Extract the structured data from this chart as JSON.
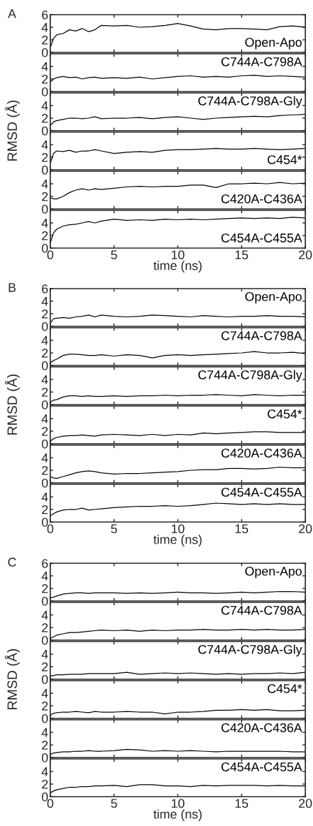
{
  "chart_data": [
    {
      "type": "line",
      "annotations": [
        "A"
      ],
      "x": [
        0,
        0.25,
        0.5,
        1,
        1.5,
        2,
        2.5,
        3,
        3.5,
        4,
        5,
        6,
        7,
        8,
        9,
        10,
        11,
        12,
        13,
        14,
        15,
        16,
        17,
        18,
        19,
        20
      ],
      "xlim": [
        0,
        20
      ],
      "xticks": [
        0,
        5,
        10,
        15,
        20
      ],
      "ylim": [
        0,
        6
      ],
      "yticks": [
        0,
        2,
        4,
        6
      ],
      "tick_labels": "y",
      "legend": "bottom right",
      "series": [
        {
          "name": "Open-Apo",
          "color": "#000000",
          "values": [
            0.8,
            2.2,
            2.8,
            3.0,
            3.6,
            3.4,
            3.8,
            3.3,
            3.6,
            4.3,
            4.2,
            4.3,
            4.0,
            4.1,
            4.3,
            4.6,
            4.2,
            3.7,
            3.6,
            3.8,
            3.8,
            3.7,
            3.6,
            4.1,
            4.2,
            4.0
          ]
        }
      ]
    },
    {
      "type": "line",
      "x": [
        0,
        0.25,
        0.5,
        1,
        1.5,
        2,
        2.5,
        3,
        3.5,
        4,
        5,
        6,
        7,
        8,
        9,
        10,
        11,
        12,
        13,
        14,
        15,
        16,
        17,
        18,
        19,
        20
      ],
      "xlim": [
        0,
        20
      ],
      "xticks": [
        0,
        5,
        10,
        15,
        20
      ],
      "ylim": [
        0,
        6
      ],
      "yticks": [
        0,
        2,
        4
      ],
      "tick_labels": "y",
      "legend": "top right",
      "series": [
        {
          "name": "C744A-C798A",
          "color": "#000000",
          "values": [
            1.5,
            2.0,
            2.2,
            2.4,
            2.2,
            2.3,
            2.0,
            2.2,
            2.3,
            2.1,
            2.2,
            2.1,
            2.3,
            2.0,
            2.2,
            2.4,
            2.5,
            2.3,
            2.4,
            2.3,
            2.5,
            2.6,
            2.4,
            2.5,
            2.4,
            2.3
          ]
        }
      ]
    },
    {
      "type": "line",
      "ylabel": "RMSD (Å)",
      "x": [
        0,
        0.25,
        0.5,
        1,
        1.5,
        2,
        2.5,
        3,
        3.5,
        4,
        5,
        6,
        7,
        8,
        9,
        10,
        11,
        12,
        13,
        14,
        15,
        16,
        17,
        18,
        19,
        20
      ],
      "xlim": [
        0,
        20
      ],
      "xticks": [
        0,
        5,
        10,
        15,
        20
      ],
      "ylim": [
        0,
        6
      ],
      "yticks": [
        0,
        2,
        4
      ],
      "tick_labels": "y",
      "legend": "top right",
      "series": [
        {
          "name": "C744A-C798A-Gly",
          "color": "#000000",
          "values": [
            0.8,
            1.4,
            1.6,
            1.8,
            2.0,
            2.0,
            1.9,
            2.0,
            2.2,
            1.9,
            2.0,
            2.0,
            2.1,
            1.9,
            2.1,
            2.2,
            2.0,
            1.8,
            2.0,
            2.1,
            2.2,
            2.3,
            2.2,
            2.4,
            2.5,
            2.6
          ]
        }
      ]
    },
    {
      "type": "line",
      "x": [
        0,
        0.25,
        0.5,
        1,
        1.5,
        2,
        2.5,
        3,
        3.5,
        4,
        5,
        6,
        7,
        8,
        9,
        10,
        11,
        12,
        13,
        14,
        15,
        16,
        17,
        18,
        19,
        20
      ],
      "xlim": [
        0,
        20
      ],
      "xticks": [
        0,
        5,
        10,
        15,
        20
      ],
      "ylim": [
        0,
        6
      ],
      "yticks": [
        0,
        2,
        4
      ],
      "tick_labels": "y",
      "legend": "bottom right",
      "series": [
        {
          "name": "C454*",
          "color": "#000000",
          "values": [
            1.0,
            2.6,
            3.0,
            2.9,
            3.1,
            2.8,
            3.0,
            3.0,
            3.2,
            3.0,
            2.6,
            2.8,
            2.9,
            2.8,
            3.1,
            3.2,
            3.2,
            3.3,
            3.4,
            3.3,
            3.3,
            3.4,
            3.3,
            3.2,
            3.3,
            3.4
          ]
        }
      ]
    },
    {
      "type": "line",
      "x": [
        0,
        0.25,
        0.5,
        1,
        1.5,
        2,
        2.5,
        3,
        3.5,
        4,
        5,
        6,
        7,
        8,
        9,
        10,
        11,
        12,
        13,
        14,
        15,
        16,
        17,
        18,
        19,
        20
      ],
      "xlim": [
        0,
        20
      ],
      "xticks": [
        0,
        5,
        10,
        15,
        20
      ],
      "ylim": [
        0,
        6
      ],
      "yticks": [
        0,
        2,
        4
      ],
      "tick_labels": "y",
      "legend": "bottom right",
      "series": [
        {
          "name": "C420A-C436A",
          "color": "#000000",
          "values": [
            1.8,
            1.6,
            1.6,
            2.0,
            2.6,
            3.0,
            3.2,
            3.0,
            3.2,
            3.1,
            3.3,
            3.5,
            3.6,
            3.5,
            3.6,
            3.6,
            3.8,
            3.8,
            3.4,
            4.0,
            4.0,
            4.1,
            4.0,
            4.2,
            4.0,
            4.1
          ]
        }
      ]
    },
    {
      "type": "line",
      "xlabel": "time (ns)",
      "x": [
        0,
        0.25,
        0.5,
        1,
        1.5,
        2,
        2.5,
        3,
        3.5,
        4,
        5,
        6,
        7,
        8,
        9,
        10,
        11,
        12,
        13,
        14,
        15,
        16,
        17,
        18,
        19,
        20
      ],
      "xlim": [
        0,
        20
      ],
      "xticks": [
        0,
        5,
        10,
        15,
        20
      ],
      "ylim": [
        0,
        6
      ],
      "yticks": [
        0,
        2,
        4
      ],
      "legend": "bottom right",
      "series": [
        {
          "name": "C454A-C455A",
          "color": "#000000",
          "values": [
            0.8,
            2.4,
            3.0,
            3.5,
            3.7,
            3.8,
            4.0,
            4.2,
            4.0,
            4.3,
            4.6,
            4.4,
            4.5,
            4.4,
            4.6,
            4.5,
            4.6,
            4.5,
            4.6,
            4.7,
            4.8,
            4.7,
            4.8,
            4.7,
            4.9,
            4.8
          ]
        }
      ]
    },
    {
      "type": "line",
      "annotations": [
        "B"
      ],
      "x": [
        0,
        0.25,
        0.5,
        1,
        1.5,
        2,
        2.5,
        3,
        3.5,
        4,
        5,
        6,
        7,
        8,
        9,
        10,
        11,
        12,
        13,
        14,
        15,
        16,
        17,
        18,
        19,
        20
      ],
      "xlim": [
        0,
        20
      ],
      "xticks": [
        0,
        5,
        10,
        15,
        20
      ],
      "ylim": [
        0,
        6
      ],
      "yticks": [
        0,
        2,
        4,
        6
      ],
      "tick_labels": "y",
      "legend": "top right",
      "series": [
        {
          "name": "Open-Apo",
          "color": "#000000",
          "values": [
            0.5,
            1.2,
            1.3,
            1.4,
            1.3,
            1.5,
            1.6,
            1.8,
            1.5,
            1.8,
            1.6,
            1.5,
            1.6,
            1.8,
            1.7,
            1.6,
            1.5,
            1.7,
            1.6,
            1.5,
            1.6,
            1.6,
            1.7,
            1.6,
            1.6,
            1.5
          ]
        }
      ]
    },
    {
      "type": "line",
      "x": [
        0,
        0.25,
        0.5,
        1,
        1.5,
        2,
        2.5,
        3,
        3.5,
        4,
        5,
        6,
        7,
        8,
        9,
        10,
        11,
        12,
        13,
        14,
        15,
        16,
        17,
        18,
        19,
        20
      ],
      "xlim": [
        0,
        20
      ],
      "xticks": [
        0,
        5,
        10,
        15,
        20
      ],
      "ylim": [
        0,
        6
      ],
      "yticks": [
        0,
        2,
        4
      ],
      "tick_labels": "y",
      "legend": "top right",
      "series": [
        {
          "name": "C744A-C798A",
          "color": "#000000",
          "values": [
            0.4,
            0.8,
            1.0,
            1.6,
            1.8,
            1.8,
            1.7,
            1.6,
            1.6,
            1.7,
            1.5,
            1.7,
            1.6,
            1.2,
            1.6,
            1.7,
            1.6,
            1.7,
            1.8,
            1.9,
            2.0,
            2.2,
            2.0,
            2.0,
            2.1,
            1.9
          ]
        }
      ]
    },
    {
      "type": "line",
      "ylabel": "RMSD (Å)",
      "x": [
        0,
        0.25,
        0.5,
        1,
        1.5,
        2,
        2.5,
        3,
        3.5,
        4,
        5,
        6,
        7,
        8,
        9,
        10,
        11,
        12,
        13,
        14,
        15,
        16,
        17,
        18,
        19,
        20
      ],
      "xlim": [
        0,
        20
      ],
      "xticks": [
        0,
        5,
        10,
        15,
        20
      ],
      "ylim": [
        0,
        6
      ],
      "yticks": [
        0,
        2,
        4
      ],
      "tick_labels": "y",
      "legend": "top right",
      "series": [
        {
          "name": "C744A-C798A-Gly",
          "color": "#000000",
          "values": [
            0.4,
            0.7,
            0.8,
            1.2,
            1.4,
            1.4,
            1.3,
            1.4,
            1.3,
            1.3,
            1.4,
            1.3,
            1.4,
            1.4,
            1.5,
            1.4,
            1.5,
            1.5,
            1.6,
            1.5,
            1.4,
            1.6,
            1.5,
            1.4,
            1.5,
            1.5
          ]
        }
      ]
    },
    {
      "type": "line",
      "x": [
        0,
        0.25,
        0.5,
        1,
        1.5,
        2,
        2.5,
        3,
        3.5,
        4,
        5,
        6,
        7,
        8,
        9,
        10,
        11,
        12,
        13,
        14,
        15,
        16,
        17,
        18,
        19,
        20
      ],
      "xlim": [
        0,
        20
      ],
      "xticks": [
        0,
        5,
        10,
        15,
        20
      ],
      "ylim": [
        0,
        6
      ],
      "yticks": [
        0,
        2,
        4
      ],
      "tick_labels": "y",
      "legend": "top right",
      "series": [
        {
          "name": "C454*",
          "color": "#000000",
          "values": [
            0.4,
            0.8,
            1.0,
            1.2,
            1.3,
            1.3,
            1.4,
            1.3,
            1.2,
            1.4,
            1.5,
            1.4,
            1.3,
            1.5,
            1.3,
            1.5,
            1.4,
            1.7,
            1.6,
            1.7,
            1.8,
            1.9,
            1.9,
            1.8,
            1.8,
            1.8
          ]
        }
      ]
    },
    {
      "type": "line",
      "x": [
        0,
        0.25,
        0.5,
        1,
        1.5,
        2,
        2.5,
        3,
        3.5,
        4,
        5,
        6,
        7,
        8,
        9,
        10,
        11,
        12,
        13,
        14,
        15,
        16,
        17,
        18,
        19,
        20
      ],
      "xlim": [
        0,
        20
      ],
      "xticks": [
        0,
        5,
        10,
        15,
        20
      ],
      "ylim": [
        0,
        6
      ],
      "yticks": [
        0,
        2,
        4
      ],
      "tick_labels": "y",
      "legend": "top right",
      "series": [
        {
          "name": "C420A-C436A",
          "color": "#000000",
          "values": [
            1.0,
            0.8,
            0.7,
            1.0,
            1.3,
            1.6,
            1.8,
            1.9,
            1.8,
            1.6,
            1.4,
            1.5,
            1.5,
            1.6,
            1.7,
            1.8,
            2.0,
            2.1,
            2.1,
            2.3,
            2.3,
            2.2,
            2.3,
            2.5,
            2.4,
            2.4
          ]
        }
      ]
    },
    {
      "type": "line",
      "xlabel": "time (ns)",
      "x": [
        0,
        0.25,
        0.5,
        1,
        1.5,
        2,
        2.5,
        3,
        3.5,
        4,
        5,
        6,
        7,
        8,
        9,
        10,
        11,
        12,
        13,
        14,
        15,
        16,
        17,
        18,
        19,
        20
      ],
      "xlim": [
        0,
        20
      ],
      "xticks": [
        0,
        5,
        10,
        15,
        20
      ],
      "ylim": [
        0,
        6
      ],
      "yticks": [
        0,
        2,
        4
      ],
      "legend": "top right",
      "series": [
        {
          "name": "C454A-C455A",
          "color": "#000000",
          "values": [
            1.0,
            1.3,
            1.6,
            1.9,
            2.0,
            2.0,
            2.2,
            1.9,
            2.0,
            2.1,
            2.3,
            2.4,
            2.5,
            2.5,
            2.6,
            2.5,
            2.6,
            2.8,
            3.0,
            2.9,
            2.8,
            2.9,
            2.8,
            2.9,
            2.8,
            2.8
          ]
        }
      ]
    },
    {
      "type": "line",
      "annotations": [
        "C"
      ],
      "x": [
        0,
        0.25,
        0.5,
        1,
        1.5,
        2,
        2.5,
        3,
        3.5,
        4,
        5,
        6,
        7,
        8,
        9,
        10,
        11,
        12,
        13,
        14,
        15,
        16,
        17,
        18,
        19,
        20
      ],
      "xlim": [
        0,
        20
      ],
      "xticks": [
        0,
        5,
        10,
        15,
        20
      ],
      "ylim": [
        0,
        6
      ],
      "yticks": [
        0,
        2,
        4,
        6
      ],
      "tick_labels": "y",
      "legend": "top right",
      "series": [
        {
          "name": "Open-Apo",
          "color": "#000000",
          "values": [
            0.5,
            0.6,
            0.8,
            1.1,
            1.2,
            1.3,
            1.3,
            1.2,
            1.3,
            1.3,
            1.3,
            1.2,
            1.3,
            1.2,
            1.3,
            1.4,
            1.3,
            1.3,
            1.2,
            1.3,
            1.4,
            1.3,
            1.4,
            1.5,
            1.5,
            1.4
          ]
        }
      ]
    },
    {
      "type": "line",
      "x": [
        0,
        0.25,
        0.5,
        1,
        1.5,
        2,
        2.5,
        3,
        3.5,
        4,
        5,
        6,
        7,
        8,
        9,
        10,
        11,
        12,
        13,
        14,
        15,
        16,
        17,
        18,
        19,
        20
      ],
      "xlim": [
        0,
        20
      ],
      "xticks": [
        0,
        5,
        10,
        15,
        20
      ],
      "ylim": [
        0,
        6
      ],
      "yticks": [
        0,
        2,
        4
      ],
      "tick_labels": "y",
      "legend": "top right",
      "series": [
        {
          "name": "C744A-C798A",
          "color": "#000000",
          "values": [
            0.3,
            0.5,
            0.8,
            1.0,
            1.2,
            1.2,
            1.3,
            1.4,
            1.5,
            1.6,
            1.5,
            1.6,
            1.4,
            1.6,
            1.5,
            1.6,
            1.6,
            1.7,
            1.6,
            1.6,
            1.7,
            1.6,
            1.7,
            1.6,
            1.6,
            1.7
          ]
        }
      ]
    },
    {
      "type": "line",
      "ylabel": "RMSD (Å)",
      "x": [
        0,
        0.25,
        0.5,
        1,
        1.5,
        2,
        2.5,
        3,
        3.5,
        4,
        5,
        6,
        7,
        8,
        9,
        10,
        11,
        12,
        13,
        14,
        15,
        16,
        17,
        18,
        19,
        20
      ],
      "xlim": [
        0,
        20
      ],
      "xticks": [
        0,
        5,
        10,
        15,
        20
      ],
      "ylim": [
        0,
        6
      ],
      "yticks": [
        0,
        2,
        4
      ],
      "tick_labels": "y",
      "legend": "top right",
      "series": [
        {
          "name": "C744A-C798A-Gly",
          "color": "#000000",
          "values": [
            0.5,
            0.6,
            0.7,
            0.7,
            0.8,
            0.8,
            0.8,
            0.9,
            0.9,
            0.9,
            0.9,
            1.1,
            0.8,
            0.9,
            1.0,
            0.9,
            1.0,
            0.9,
            0.8,
            0.9,
            0.8,
            0.9,
            0.9,
            1.0,
            0.9,
            1.1
          ]
        }
      ]
    },
    {
      "type": "line",
      "x": [
        0,
        0.25,
        0.5,
        1,
        1.5,
        2,
        2.5,
        3,
        3.5,
        4,
        5,
        6,
        7,
        8,
        9,
        10,
        11,
        12,
        13,
        14,
        15,
        16,
        17,
        18,
        19,
        20
      ],
      "xlim": [
        0,
        20
      ],
      "xticks": [
        0,
        5,
        10,
        15,
        20
      ],
      "ylim": [
        0,
        6
      ],
      "yticks": [
        0,
        2,
        4
      ],
      "tick_labels": "y",
      "legend": "top right",
      "series": [
        {
          "name": "C454*",
          "color": "#000000",
          "values": [
            0.5,
            0.8,
            0.9,
            1.0,
            1.0,
            1.1,
            1.0,
            0.9,
            1.1,
            1.0,
            1.0,
            1.1,
            1.0,
            1.0,
            0.7,
            1.0,
            1.0,
            1.1,
            1.3,
            1.3,
            1.4,
            1.3,
            1.4,
            1.2,
            1.2,
            1.3
          ]
        }
      ]
    },
    {
      "type": "line",
      "x": [
        0,
        0.25,
        0.5,
        1,
        1.5,
        2,
        2.5,
        3,
        3.5,
        4,
        5,
        6,
        7,
        8,
        9,
        10,
        11,
        12,
        13,
        14,
        15,
        16,
        17,
        18,
        19,
        20
      ],
      "xlim": [
        0,
        20
      ],
      "xticks": [
        0,
        5,
        10,
        15,
        20
      ],
      "ylim": [
        0,
        6
      ],
      "yticks": [
        0,
        2,
        4
      ],
      "tick_labels": "y",
      "legend": "top right",
      "series": [
        {
          "name": "C420A-C436A",
          "color": "#000000",
          "values": [
            0.5,
            0.7,
            0.8,
            0.9,
            0.9,
            1.0,
            1.0,
            1.1,
            1.0,
            1.0,
            1.1,
            1.3,
            1.2,
            1.0,
            1.1,
            1.0,
            1.1,
            1.0,
            0.9,
            1.0,
            1.0,
            1.0,
            1.0,
            1.0,
            0.9,
            0.9
          ]
        }
      ]
    },
    {
      "type": "line",
      "xlabel": "time (ns)",
      "x": [
        0,
        0.25,
        0.5,
        1,
        1.5,
        2,
        2.5,
        3,
        3.5,
        4,
        5,
        6,
        7,
        8,
        9,
        10,
        11,
        12,
        13,
        14,
        15,
        16,
        17,
        18,
        19,
        20
      ],
      "xlim": [
        0,
        20
      ],
      "xticks": [
        0,
        5,
        10,
        15,
        20
      ],
      "ylim": [
        0,
        6
      ],
      "yticks": [
        0,
        2,
        4
      ],
      "legend": "top right",
      "series": [
        {
          "name": "C454A-C455A",
          "color": "#000000",
          "values": [
            0.6,
            0.9,
            1.1,
            1.3,
            1.5,
            1.5,
            1.6,
            1.6,
            1.7,
            1.7,
            1.8,
            1.6,
            1.9,
            1.9,
            1.7,
            1.7,
            1.6,
            1.8,
            1.7,
            1.8,
            1.8,
            1.8,
            1.7,
            1.8,
            1.7,
            1.7
          ]
        }
      ]
    }
  ]
}
